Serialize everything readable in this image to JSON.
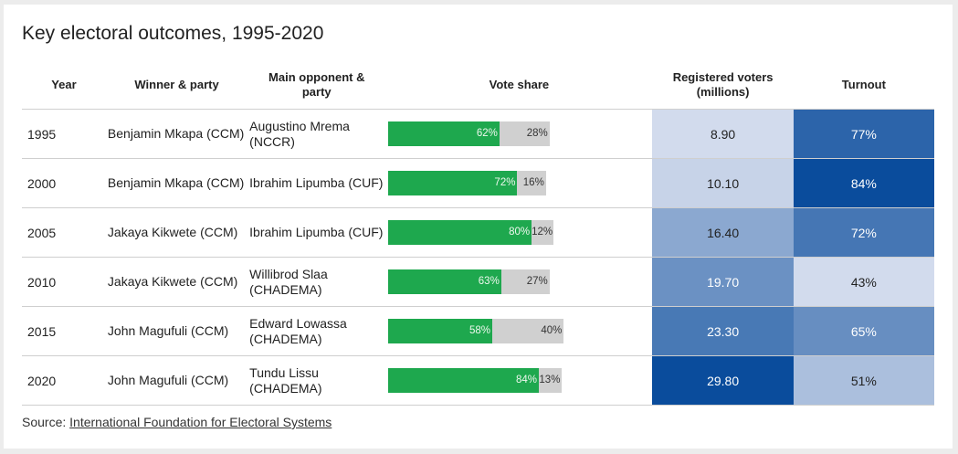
{
  "title": "Key electoral outcomes, 1995-2020",
  "headers": {
    "year": "Year",
    "winner": "Winner & party",
    "opponent": "Main opponent & party",
    "vote_share": "Vote share",
    "registered": "Registered voters (millions)",
    "turnout": "Turnout"
  },
  "source_prefix": "Source: ",
  "source_link": "International Foundation for Electoral Systems",
  "colors": {
    "winner_bar": "#1ea84e",
    "opponent_bar": "#d0d0d0",
    "heat_low": "#dde3f1",
    "heat_high": "#0a4c9c"
  },
  "chart_data": {
    "type": "table",
    "columns": [
      "Year",
      "Winner & party",
      "Main opponent & party",
      "Vote share",
      "Registered voters (millions)",
      "Turnout"
    ],
    "rows": [
      {
        "year": "1995",
        "winner": "Benjamin Mkapa (CCM)",
        "opponent": "Augustino Mrema (NCCR)",
        "winner_share": 62,
        "opponent_share": 28,
        "winner_label": "62%",
        "opponent_label": "28%",
        "registered": 8.9,
        "registered_label": "8.90",
        "turnout": 77,
        "turnout_label": "77%"
      },
      {
        "year": "2000",
        "winner": "Benjamin Mkapa (CCM)",
        "opponent": "Ibrahim Lipumba (CUF)",
        "winner_share": 72,
        "opponent_share": 16,
        "winner_label": "72%",
        "opponent_label": "16%",
        "registered": 10.1,
        "registered_label": "10.10",
        "turnout": 84,
        "turnout_label": "84%"
      },
      {
        "year": "2005",
        "winner": "Jakaya Kikwete (CCM)",
        "opponent": "Ibrahim Lipumba (CUF)",
        "winner_share": 80,
        "opponent_share": 12,
        "winner_label": "80%",
        "opponent_label": "12%",
        "registered": 16.4,
        "registered_label": "16.40",
        "turnout": 72,
        "turnout_label": "72%"
      },
      {
        "year": "2010",
        "winner": "Jakaya Kikwete (CCM)",
        "opponent": "Willibrod Slaa (CHADEMA)",
        "winner_share": 63,
        "opponent_share": 27,
        "winner_label": "63%",
        "opponent_label": "27%",
        "registered": 19.7,
        "registered_label": "19.70",
        "turnout": 43,
        "turnout_label": "43%"
      },
      {
        "year": "2015",
        "winner": "John Magufuli (CCM)",
        "opponent": "Edward Lowassa (CHADEMA)",
        "winner_share": 58,
        "opponent_share": 40,
        "winner_label": "58%",
        "opponent_label": "40%",
        "registered": 23.3,
        "registered_label": "23.30",
        "turnout": 65,
        "turnout_label": "65%"
      },
      {
        "year": "2020",
        "winner": "John Magufuli (CCM)",
        "opponent": "Tundu Lissu (CHADEMA)",
        "winner_share": 84,
        "opponent_share": 13,
        "winner_label": "84%",
        "opponent_label": "13%",
        "registered": 29.8,
        "registered_label": "29.80",
        "turnout": 51,
        "turnout_label": "51%"
      }
    ]
  }
}
